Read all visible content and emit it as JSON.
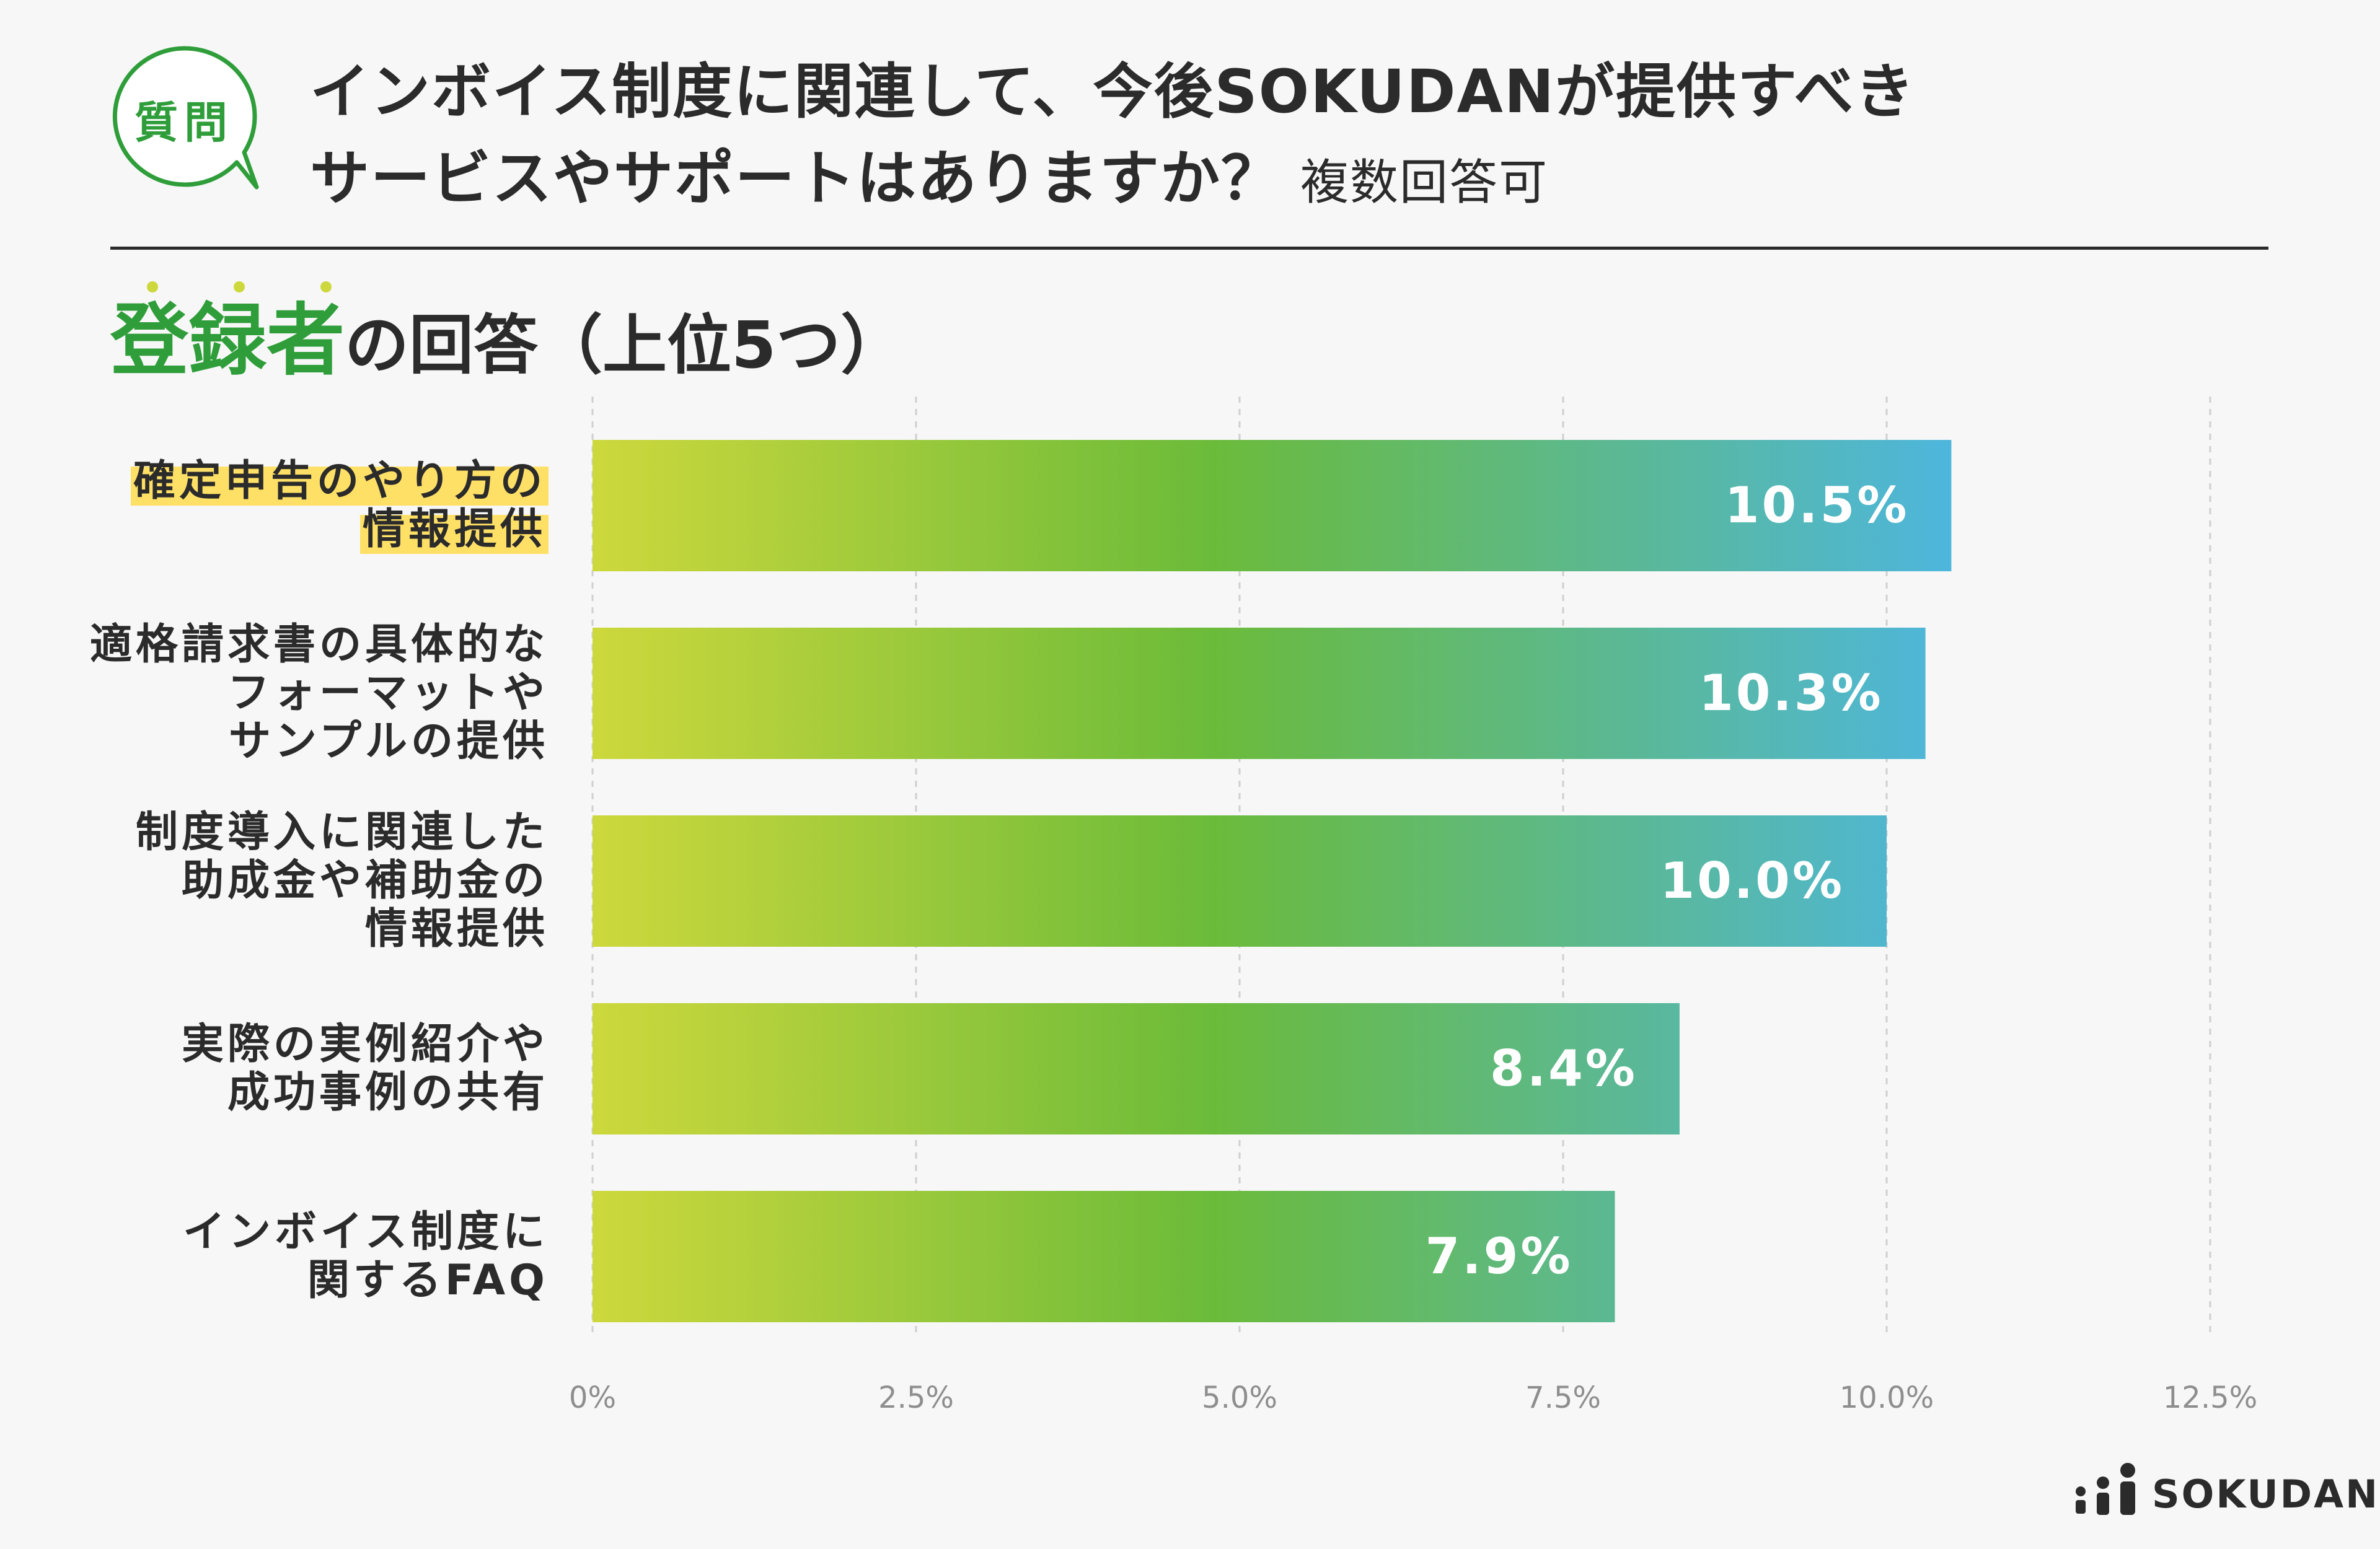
{
  "badge": {
    "label": "質問"
  },
  "question": {
    "line1": "インボイス制度に関連して、今後SOKUDANが提供すべき",
    "line2": "サービスやサポートはありますか？",
    "note": "複数回答可"
  },
  "subtitle": {
    "accent": "登録者",
    "rest": "の回答（上位5つ）"
  },
  "brand": {
    "name": "SOKUDAN"
  },
  "colors": {
    "accent": "#2f9e3a",
    "highlight": "#ffe066",
    "bar_start": "#cdd83c",
    "bar_mid": "#6bbb3a",
    "bar_end": "#4db6e0"
  },
  "chart_data": {
    "type": "bar",
    "orientation": "horizontal",
    "title": "登録者の回答（上位5つ）",
    "xlabel": "",
    "ylabel": "",
    "xlim": [
      0,
      12.5
    ],
    "ticks": [
      "0%",
      "2.5%",
      "5.0%",
      "7.5%",
      "10.0%",
      "12.5%"
    ],
    "tick_values": [
      0,
      2.5,
      5.0,
      7.5,
      10.0,
      12.5
    ],
    "grid": true,
    "categories": [
      {
        "lines": [
          "確定申告のやり方の",
          "情報提供"
        ],
        "highlight": true
      },
      {
        "lines": [
          "適格請求書の具体的な",
          "フォーマットや",
          "サンプルの提供"
        ],
        "highlight": false
      },
      {
        "lines": [
          "制度導入に関連した",
          "助成金や補助金の",
          "情報提供"
        ],
        "highlight": false
      },
      {
        "lines": [
          "実際の実例紹介や",
          "成功事例の共有"
        ],
        "highlight": false
      },
      {
        "lines": [
          "インボイス制度に",
          "関するFAQ"
        ],
        "highlight": false
      }
    ],
    "values": [
      10.5,
      10.3,
      10.0,
      8.4,
      7.9
    ],
    "value_labels": [
      "10.5%",
      "10.3%",
      "10.0%",
      "8.4%",
      "7.9%"
    ]
  }
}
